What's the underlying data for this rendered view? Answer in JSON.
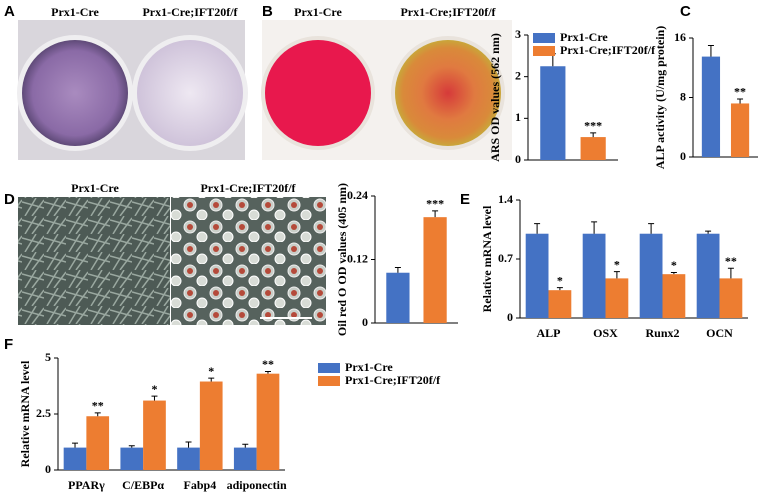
{
  "panels": {
    "letters": [
      "A",
      "B",
      "C",
      "D",
      "E",
      "F"
    ],
    "photo_a": [
      "Prx1-Cre",
      "Prx1-Cre;IFT20f/f"
    ],
    "photo_b": [
      "Prx1-Cre",
      "Prx1-Cre;IFT20f/f"
    ],
    "photo_d": [
      "Prx1-Cre",
      "Prx1-Cre;IFT20f/f"
    ]
  },
  "chart_data": [
    {
      "type": "bar",
      "ylabel": "ARS OD values (562 nm)",
      "ylim": [
        0,
        3
      ],
      "yticks": [
        0,
        1,
        2,
        3
      ],
      "legend": true,
      "series": [
        {
          "name": "Prx1-Cre",
          "color": "#4472c4",
          "values": [
            2.25
          ],
          "errors": [
            0.3
          ]
        },
        {
          "name": "Prx1-Cre;IFT20f/f",
          "color": "#ed7d31",
          "values": [
            0.55
          ],
          "errors": [
            0.1
          ],
          "annotations": [
            "***"
          ]
        }
      ]
    },
    {
      "type": "bar",
      "ylabel": "ALP activity (U/mg protein)",
      "ylim": [
        0,
        16
      ],
      "yticks": [
        0,
        8,
        16
      ],
      "series": [
        {
          "name": "Prx1-Cre",
          "color": "#4472c4",
          "values": [
            13.5
          ],
          "errors": [
            1.5
          ]
        },
        {
          "name": "Prx1-Cre;IFT20f/f",
          "color": "#ed7d31",
          "values": [
            7.2
          ],
          "errors": [
            0.6
          ],
          "annotations": [
            "**"
          ]
        }
      ]
    },
    {
      "type": "bar",
      "ylabel": "Oil red O OD values (405 nm)",
      "ylim": [
        0,
        0.24
      ],
      "yticks": [
        0,
        0.12,
        0.24
      ],
      "series": [
        {
          "name": "Prx1-Cre",
          "color": "#4472c4",
          "values": [
            0.095
          ],
          "errors": [
            0.01
          ]
        },
        {
          "name": "Prx1-Cre;IFT20f/f",
          "color": "#ed7d31",
          "values": [
            0.2
          ],
          "errors": [
            0.012
          ],
          "annotations": [
            "***"
          ]
        }
      ]
    },
    {
      "type": "bar",
      "ylabel": "Relative mRNA level",
      "ylim": [
        0,
        1.4
      ],
      "yticks": [
        0,
        0.7,
        1.4
      ],
      "categories": [
        "ALP",
        "OSX",
        "Runx2",
        "OCN"
      ],
      "series": [
        {
          "name": "Prx1-Cre",
          "color": "#4472c4",
          "values": [
            1,
            1,
            1,
            1
          ],
          "errors": [
            0.12,
            0.14,
            0.12,
            0.03
          ]
        },
        {
          "name": "Prx1-Cre;IFT20f/f",
          "color": "#ed7d31",
          "values": [
            0.33,
            0.47,
            0.52,
            0.47
          ],
          "errors": [
            0.03,
            0.08,
            0.02,
            0.12
          ],
          "annotations": [
            "*",
            "*",
            "*",
            "**"
          ]
        }
      ]
    },
    {
      "type": "bar",
      "ylabel": "Relative mRNA level",
      "ylim": [
        0,
        5
      ],
      "yticks": [
        0,
        2.5,
        5
      ],
      "legend": true,
      "categories": [
        "PPARγ",
        "C/EBPα",
        "Fabp4",
        "adiponectin"
      ],
      "series": [
        {
          "name": "Prx1-Cre",
          "color": "#4472c4",
          "values": [
            1,
            1,
            1,
            1
          ],
          "errors": [
            0.2,
            0.08,
            0.25,
            0.15
          ]
        },
        {
          "name": "Prx1-Cre;IFT20f/f",
          "color": "#ed7d31",
          "values": [
            2.4,
            3.1,
            3.95,
            4.3
          ],
          "errors": [
            0.15,
            0.2,
            0.15,
            0.1
          ],
          "annotations": [
            "**",
            "*",
            "*",
            "**"
          ]
        }
      ]
    }
  ]
}
